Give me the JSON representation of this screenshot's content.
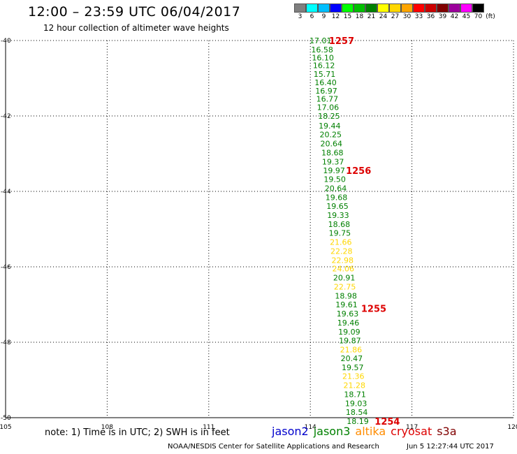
{
  "header": {
    "title": "12:00 – 23:59 UTC 06/04/2017",
    "subtitle": "12 hour collection of altimeter wave heights"
  },
  "colorbar": {
    "labels": [
      "3",
      "6",
      "9",
      "12",
      "15",
      "18",
      "21",
      "24",
      "27",
      "30",
      "33",
      "36",
      "39",
      "42",
      "45",
      "70"
    ],
    "unit": "(ft)",
    "colors": [
      "#7f7f7f",
      "#00ffff",
      "#00bfff",
      "#0000ff",
      "#00ff00",
      "#00c000",
      "#008000",
      "#ffff00",
      "#ffd700",
      "#ffa500",
      "#ff0000",
      "#cc0000",
      "#800000",
      "#9b009b",
      "#ff00ff",
      "#000000"
    ]
  },
  "chart_data": {
    "type": "scatter",
    "xlim": [
      105,
      120
    ],
    "ylim": [
      -50,
      -40
    ],
    "x_ticks": [
      "105",
      "108",
      "111",
      "114",
      "117",
      "120"
    ],
    "y_ticks": [
      "-40",
      "-42",
      "-44",
      "-46",
      "-48",
      "-50"
    ],
    "grid": true,
    "points": [
      {
        "lon": 114.3,
        "lat": -40.0,
        "label": "17.01",
        "color": "#008000"
      },
      {
        "lon": 114.35,
        "lat": -40.24,
        "label": "16.58",
        "color": "#008000"
      },
      {
        "lon": 114.37,
        "lat": -40.45,
        "label": "16.10",
        "color": "#008000"
      },
      {
        "lon": 114.4,
        "lat": -40.66,
        "label": "16.12",
        "color": "#008000"
      },
      {
        "lon": 114.42,
        "lat": -40.89,
        "label": "15.71",
        "color": "#008000"
      },
      {
        "lon": 114.45,
        "lat": -41.11,
        "label": "16.40",
        "color": "#008000"
      },
      {
        "lon": 114.47,
        "lat": -41.33,
        "label": "16.97",
        "color": "#008000"
      },
      {
        "lon": 114.5,
        "lat": -41.55,
        "label": "16.77",
        "color": "#008000"
      },
      {
        "lon": 114.52,
        "lat": -41.77,
        "label": "17.06",
        "color": "#008000"
      },
      {
        "lon": 114.55,
        "lat": -42.0,
        "label": "18.25",
        "color": "#008000"
      },
      {
        "lon": 114.57,
        "lat": -42.26,
        "label": "19.44",
        "color": "#008000"
      },
      {
        "lon": 114.6,
        "lat": -42.49,
        "label": "20.25",
        "color": "#008000"
      },
      {
        "lon": 114.62,
        "lat": -42.73,
        "label": "20.64",
        "color": "#008000"
      },
      {
        "lon": 114.65,
        "lat": -42.97,
        "label": "18.68",
        "color": "#008000"
      },
      {
        "lon": 114.67,
        "lat": -43.21,
        "label": "19.37",
        "color": "#008000"
      },
      {
        "lon": 114.7,
        "lat": -43.44,
        "label": "19.97",
        "color": "#008000"
      },
      {
        "lon": 114.72,
        "lat": -43.68,
        "label": "19.50",
        "color": "#008000"
      },
      {
        "lon": 114.75,
        "lat": -43.92,
        "label": "20.64",
        "color": "#008000"
      },
      {
        "lon": 114.77,
        "lat": -44.16,
        "label": "19.68",
        "color": "#008000"
      },
      {
        "lon": 114.8,
        "lat": -44.39,
        "label": "19.65",
        "color": "#008000"
      },
      {
        "lon": 114.82,
        "lat": -44.63,
        "label": "19.33",
        "color": "#008000"
      },
      {
        "lon": 114.85,
        "lat": -44.87,
        "label": "18.68",
        "color": "#008000"
      },
      {
        "lon": 114.87,
        "lat": -45.1,
        "label": "19.75",
        "color": "#008000"
      },
      {
        "lon": 114.9,
        "lat": -45.34,
        "label": "21.66",
        "color": "#ffd700"
      },
      {
        "lon": 114.92,
        "lat": -45.58,
        "label": "22.28",
        "color": "#ffd700"
      },
      {
        "lon": 114.95,
        "lat": -45.82,
        "label": "22.98",
        "color": "#ffd700"
      },
      {
        "lon": 114.97,
        "lat": -46.05,
        "label": "24.06",
        "color": "#ffd700"
      },
      {
        "lon": 115.0,
        "lat": -46.29,
        "label": "20.91",
        "color": "#008000"
      },
      {
        "lon": 115.02,
        "lat": -46.53,
        "label": "22.75",
        "color": "#ffd700"
      },
      {
        "lon": 115.05,
        "lat": -46.77,
        "label": "18.98",
        "color": "#008000"
      },
      {
        "lon": 115.07,
        "lat": -47.0,
        "label": "19.61",
        "color": "#008000"
      },
      {
        "lon": 115.1,
        "lat": -47.24,
        "label": "19.63",
        "color": "#008000"
      },
      {
        "lon": 115.12,
        "lat": -47.48,
        "label": "19.46",
        "color": "#008000"
      },
      {
        "lon": 115.15,
        "lat": -47.72,
        "label": "19.09",
        "color": "#008000"
      },
      {
        "lon": 115.17,
        "lat": -47.95,
        "label": "19.87",
        "color": "#008000"
      },
      {
        "lon": 115.2,
        "lat": -48.19,
        "label": "21.86",
        "color": "#ffd700"
      },
      {
        "lon": 115.22,
        "lat": -48.43,
        "label": "20.47",
        "color": "#008000"
      },
      {
        "lon": 115.25,
        "lat": -48.67,
        "label": "19.57",
        "color": "#008000"
      },
      {
        "lon": 115.27,
        "lat": -48.9,
        "label": "21.36",
        "color": "#ffd700"
      },
      {
        "lon": 115.3,
        "lat": -49.14,
        "label": "21.28",
        "color": "#ffd700"
      },
      {
        "lon": 115.32,
        "lat": -49.38,
        "label": "18.71",
        "color": "#008000"
      },
      {
        "lon": 115.35,
        "lat": -49.62,
        "label": "19.03",
        "color": "#008000"
      },
      {
        "lon": 115.37,
        "lat": -49.85,
        "label": "18.54",
        "color": "#008000"
      },
      {
        "lon": 115.4,
        "lat": -50.09,
        "label": "18.19",
        "color": "#008000"
      }
    ],
    "pass_times": [
      {
        "lon": 114.55,
        "lat": -40.0,
        "label": "1257"
      },
      {
        "lon": 115.05,
        "lat": -43.44,
        "label": "1256"
      },
      {
        "lon": 115.5,
        "lat": -47.1,
        "label": "1255"
      },
      {
        "lon": 115.9,
        "lat": -50.09,
        "label": "1254"
      }
    ]
  },
  "note": "note:  1) Time is in UTC;  2) SWH is in feet",
  "legend": [
    {
      "label": "jason2",
      "color": "#0000cc"
    },
    {
      "label": "jason3",
      "color": "#008000"
    },
    {
      "label": "altika",
      "color": "#ff8c00"
    },
    {
      "label": "cryosat",
      "color": "#dd0000"
    },
    {
      "label": "s3a",
      "color": "#800000"
    }
  ],
  "footer": {
    "credit": "NOAA/NESDIS Center for Satellite Applications and Research",
    "timestamp": "Jun  5 12:27:44 UTC 2017"
  }
}
